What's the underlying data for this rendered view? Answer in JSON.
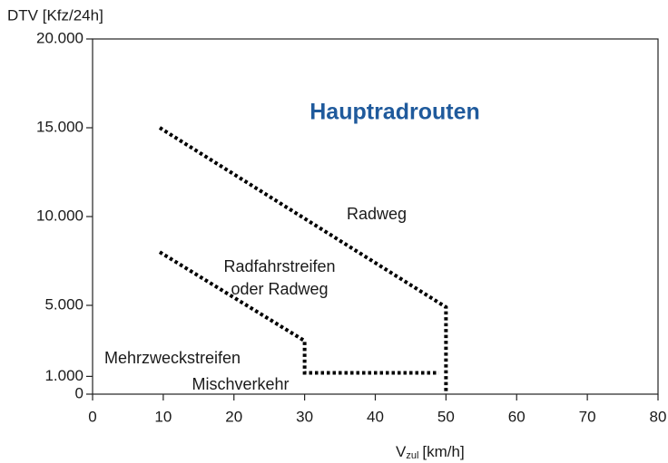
{
  "chart_data": {
    "type": "line",
    "title": "Hauptradrouten",
    "y_label": "DTV [Kfz/24h]",
    "x_label": {
      "main": "V",
      "sub": "zul",
      "unit": "[km/h]"
    },
    "xlim": [
      0,
      80
    ],
    "xticks": [
      0,
      10,
      20,
      30,
      40,
      50,
      60,
      70,
      80
    ],
    "ylim": [
      0,
      20000
    ],
    "yticks": [
      0,
      {
        "value": 1000,
        "label": "1.000"
      },
      {
        "value": 5000,
        "label": "5.000"
      },
      {
        "value": 10000,
        "label": "10.000"
      },
      {
        "value": 15000,
        "label": "15.000"
      },
      {
        "value": 20000,
        "label": "20.000"
      }
    ],
    "series": [
      {
        "color": "#000000",
        "x": [
          9.5,
          50,
          50
        ],
        "values": [
          15000,
          4900,
          0
        ]
      },
      {
        "color": "#000000",
        "x": [
          9.5,
          30,
          30,
          49
        ],
        "values": [
          8000,
          3000,
          1200,
          1200
        ]
      }
    ],
    "annotations": [
      "Radweg",
      "Radfahrstreifen",
      "oder Radweg",
      "Mehrzweckstreifen",
      "Mischverkehr"
    ]
  }
}
